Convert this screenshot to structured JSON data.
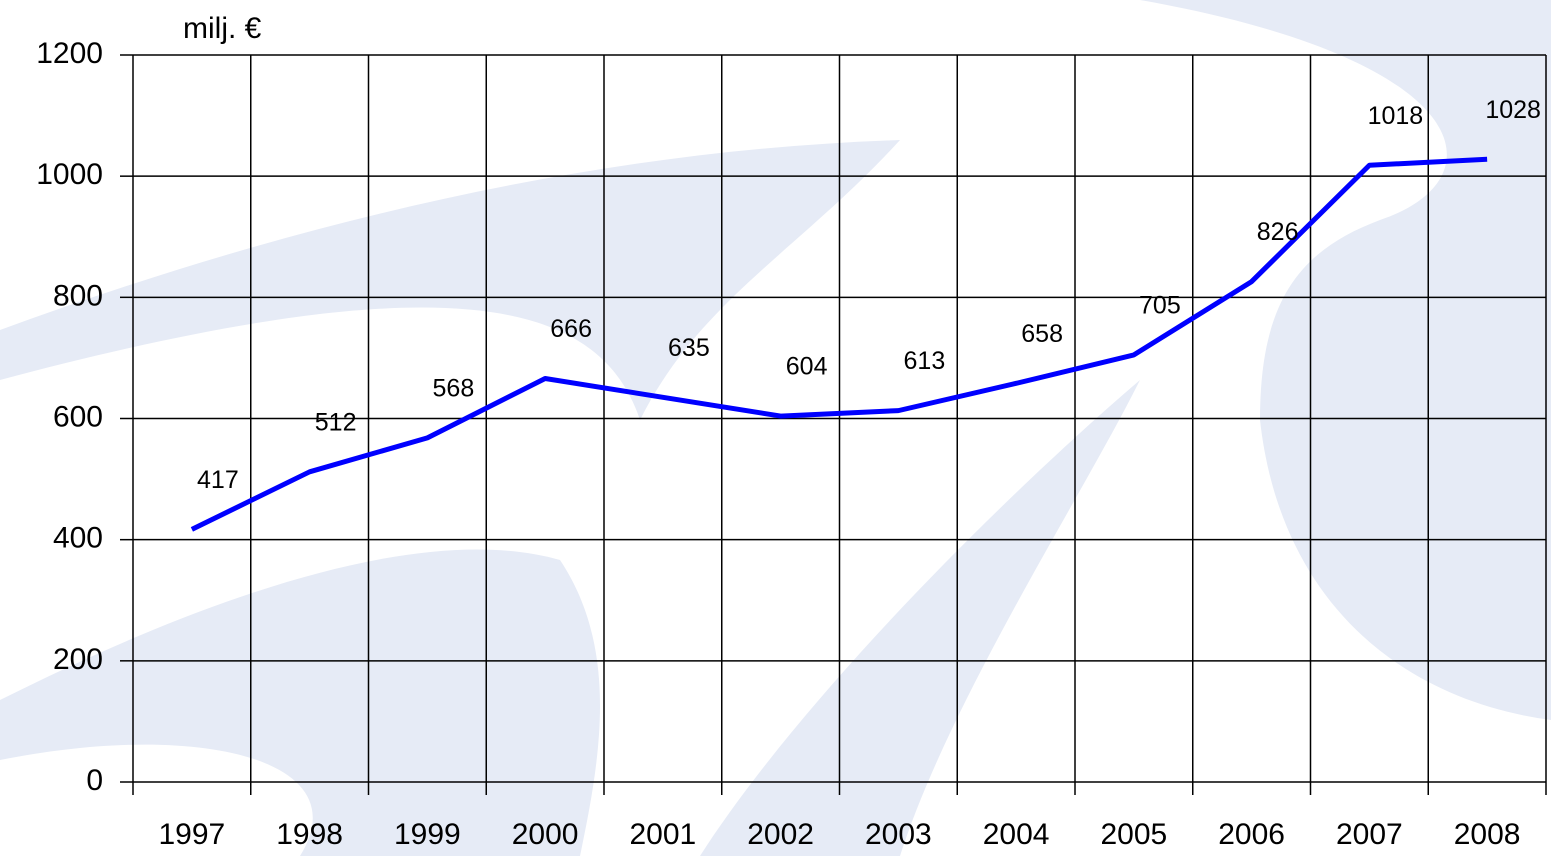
{
  "chart_data": {
    "type": "line",
    "y_label": "milj. €",
    "categories": [
      "1997",
      "1998",
      "1999",
      "2000",
      "2001",
      "2002",
      "2003",
      "2004",
      "2005",
      "2006",
      "2007",
      "2008"
    ],
    "series": [
      {
        "name": null,
        "color": "#0000ff",
        "values": [
          417,
          512,
          568,
          666,
          635,
          604,
          613,
          658,
          705,
          826,
          1018,
          1028
        ]
      }
    ],
    "ylim": [
      0,
      1200
    ],
    "yticks": [
      0,
      200,
      400,
      600,
      800,
      1000,
      1200
    ],
    "grid": true
  }
}
